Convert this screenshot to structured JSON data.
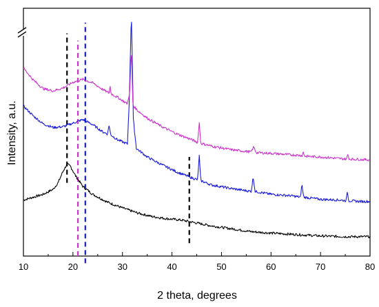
{
  "chart_data": {
    "type": "line",
    "title": "",
    "xlabel": "2 theta, degrees",
    "ylabel": "Intensity, a.u.",
    "xlim": [
      10,
      80
    ],
    "xticks": [
      "10",
      "20",
      "30",
      "40",
      "50",
      "60",
      "70",
      "80"
    ],
    "y_ticks_shown": false,
    "y_axis_break": true,
    "grid": false,
    "legend": "none",
    "series": [
      {
        "color": "#000000",
        "points": [
          [
            10,
            0.78
          ],
          [
            12,
            0.82
          ],
          [
            14,
            0.86
          ],
          [
            16,
            0.93
          ],
          [
            17,
            1.02
          ],
          [
            18,
            1.18
          ],
          [
            18.8,
            1.28
          ],
          [
            19.5,
            1.25
          ],
          [
            20.5,
            1.12
          ],
          [
            22,
            0.97
          ],
          [
            24,
            0.86
          ],
          [
            27,
            0.75
          ],
          [
            30,
            0.67
          ],
          [
            33,
            0.6
          ],
          [
            36,
            0.55
          ],
          [
            39,
            0.52
          ],
          [
            42,
            0.5
          ],
          [
            45,
            0.46
          ],
          [
            48,
            0.42
          ],
          [
            52,
            0.38
          ],
          [
            56,
            0.34
          ],
          [
            60,
            0.32
          ],
          [
            65,
            0.3
          ],
          [
            70,
            0.28
          ],
          [
            75,
            0.27
          ],
          [
            80,
            0.27
          ]
        ]
      },
      {
        "color": "#1a1adb",
        "points": [
          [
            10,
            2.09
          ],
          [
            12,
            1.95
          ],
          [
            14,
            1.84
          ],
          [
            16,
            1.79
          ],
          [
            18,
            1.8
          ],
          [
            20,
            1.85
          ],
          [
            22,
            1.9
          ],
          [
            24,
            1.83
          ],
          [
            26,
            1.73
          ],
          [
            27,
            1.7
          ],
          [
            27.3,
            1.83
          ],
          [
            27.6,
            1.69
          ],
          [
            29,
            1.62
          ],
          [
            31,
            1.56
          ],
          [
            31.4,
            2.2
          ],
          [
            31.8,
            3.42
          ],
          [
            32.2,
            1.9
          ],
          [
            32.8,
            1.5
          ],
          [
            35,
            1.38
          ],
          [
            38,
            1.27
          ],
          [
            41,
            1.17
          ],
          [
            44,
            1.09
          ],
          [
            45.2,
            1.06
          ],
          [
            45.5,
            1.42
          ],
          [
            45.8,
            1.05
          ],
          [
            48,
            0.99
          ],
          [
            52,
            0.94
          ],
          [
            56,
            0.9
          ],
          [
            56.4,
            1.1
          ],
          [
            56.8,
            0.9
          ],
          [
            60,
            0.86
          ],
          [
            64,
            0.84
          ],
          [
            66,
            0.82
          ],
          [
            66.2,
            1.01
          ],
          [
            66.6,
            0.82
          ],
          [
            70,
            0.79
          ],
          [
            74,
            0.78
          ],
          [
            75.2,
            0.77
          ],
          [
            75.4,
            0.9
          ],
          [
            75.7,
            0.77
          ],
          [
            78,
            0.76
          ],
          [
            80,
            0.76
          ]
        ]
      },
      {
        "color": "#cc33cc",
        "points": [
          [
            10,
            2.62
          ],
          [
            12,
            2.45
          ],
          [
            14,
            2.33
          ],
          [
            16,
            2.3
          ],
          [
            18,
            2.34
          ],
          [
            20,
            2.42
          ],
          [
            22,
            2.46
          ],
          [
            24,
            2.41
          ],
          [
            26,
            2.32
          ],
          [
            27.3,
            2.27
          ],
          [
            27.5,
            2.37
          ],
          [
            27.7,
            2.26
          ],
          [
            29,
            2.21
          ],
          [
            31,
            2.12
          ],
          [
            31.5,
            2.3
          ],
          [
            31.8,
            2.9
          ],
          [
            32.1,
            2.1
          ],
          [
            33,
            2.03
          ],
          [
            35,
            1.92
          ],
          [
            38,
            1.8
          ],
          [
            41,
            1.7
          ],
          [
            44,
            1.62
          ],
          [
            45.2,
            1.58
          ],
          [
            45.5,
            1.88
          ],
          [
            45.8,
            1.57
          ],
          [
            48,
            1.53
          ],
          [
            52,
            1.48
          ],
          [
            56,
            1.45
          ],
          [
            56.5,
            1.52
          ],
          [
            57,
            1.44
          ],
          [
            60,
            1.43
          ],
          [
            64,
            1.41
          ],
          [
            66.3,
            1.4
          ],
          [
            66.5,
            1.45
          ],
          [
            66.8,
            1.39
          ],
          [
            70,
            1.38
          ],
          [
            75.3,
            1.35
          ],
          [
            75.5,
            1.42
          ],
          [
            75.8,
            1.35
          ],
          [
            80,
            1.34
          ]
        ]
      }
    ],
    "reference_lines": [
      {
        "x": 18.8,
        "color": "#000000",
        "y_from": 1.02,
        "y_to": 3.1
      },
      {
        "x": 21.0,
        "color": "#cc33cc",
        "y_from": 0.0,
        "y_to": 3.0
      },
      {
        "x": 22.5,
        "color": "#1a1adb",
        "y_from": -0.1,
        "y_to": 3.25
      },
      {
        "x": 43.5,
        "color": "#000000",
        "y_from": 0.18,
        "y_to": 1.38
      }
    ]
  }
}
